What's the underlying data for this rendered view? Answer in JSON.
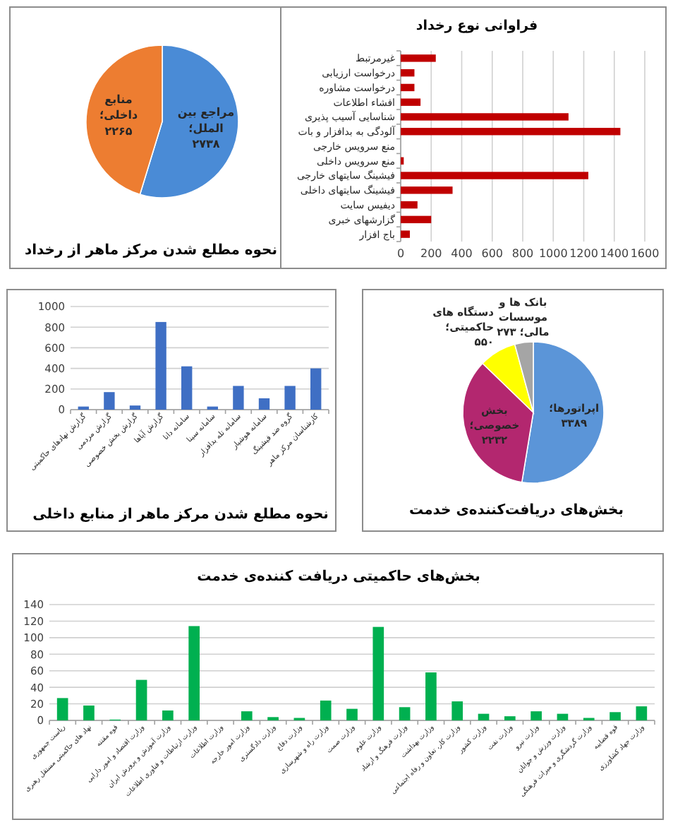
{
  "chart_data": [
    {
      "type": "pie",
      "title": "نحوه مطلع شدن مرکز ماهر از رخداد",
      "categories": [
        "مراجع بین الملل؛",
        "منابع داخلی؛"
      ],
      "values": [
        2738,
        2265
      ],
      "value_labels": [
        "۲۷۳۸",
        "۲۲۶۵"
      ],
      "colors": [
        "#4a8bd6",
        "#ed7d31"
      ]
    },
    {
      "type": "bar",
      "orientation": "horizontal",
      "title": "فراوانی نوع رخداد",
      "categories": [
        "غیرمرتبط",
        "درخواست ارزیابی",
        "درخواست مشاوره",
        "افشاء اطلاعات",
        "شناسایی آسیب پذیری",
        "آلودگی به بدافزار و بات",
        "منع سرویس خارجی",
        "منع سرویس داخلی",
        "فیشینگ سایتهای خارجی",
        "فیشینگ سایتهای داخلی",
        "دیفیس سایت",
        "گزارشهای خبری",
        "باج افزار"
      ],
      "values": [
        230,
        90,
        90,
        130,
        1100,
        1440,
        0,
        20,
        1230,
        340,
        110,
        200,
        60
      ],
      "color": "#c00000",
      "xlim": [
        0,
        1600
      ],
      "xticks": [
        0,
        200,
        400,
        600,
        800,
        1000,
        1200,
        1400,
        1600
      ],
      "grid": "x"
    },
    {
      "type": "bar",
      "title": "نحوه مطلع شدن مرکز ماهر از منابع داخلی",
      "categories": [
        "گزارش نهادهای حاکمیتی",
        "گزارش مردمی",
        "گزارش بخش خصوصی",
        "گزارش آپاها",
        "سامانه دانا",
        "سامانه سینا",
        "سامانه تله بدافزار",
        "سامانه هوشیار",
        "گروه ضد فیشینگ",
        "کارشناسان مرکز ماهر"
      ],
      "values": [
        30,
        170,
        40,
        850,
        420,
        30,
        230,
        110,
        230,
        400
      ],
      "color": "#3f6fc4",
      "ylim": [
        0,
        1000
      ],
      "yticks": [
        0,
        200,
        400,
        600,
        800,
        1000
      ],
      "grid": "y"
    },
    {
      "type": "pie",
      "title": "بخش‌های دریافت‌کننده‌ی خدمت",
      "categories": [
        "اپراتورها؛",
        "بخش خصوصی؛",
        "دستگاه های حاکمیتی؛",
        "بانک ها و موسسات مالی؛"
      ],
      "values": [
        3389,
        2232,
        550,
        273
      ],
      "value_labels": [
        "۳۳۸۹",
        "۲۲۳۲",
        "۵۵۰",
        "۲۷۳"
      ],
      "colors": [
        "#5b95d8",
        "#b3276f",
        "#ffff00",
        "#a5a5a5"
      ]
    },
    {
      "type": "bar",
      "title": "بخش‌های حاکمیتی دریافت کننده‌ی خدمت",
      "categories": [
        "ریاست جمهوری",
        "نهاد های حاکمیتی مستقل رهبری",
        "قوه مقننه",
        "وزارت اقتصاد و امور دارایی",
        "وزارت آموزش و پرورش ایران",
        "وزارت ارتباطات و فناوری اطلاعات",
        "وزارت اطلاعات",
        "وزارت امور خارجه",
        "وزارت دادگستری",
        "وزارت دفاع",
        "وزارت راه و شهرسازی",
        "وزارت صمت",
        "وزارت علوم",
        "وزارت فرهنگ و ارشاد",
        "وزارت بهداشت",
        "وزارت کار، تعاون و رفاه اجتماعی",
        "وزارت کشور",
        "وزارت نفت",
        "وزارت نیرو",
        "وزارت ورزش و جوانان",
        "وزارت گردشگری و میراث فرهنگی",
        "قوه قضاییه",
        "وزارت جهاد کشاورزی"
      ],
      "values": [
        27,
        18,
        1,
        49,
        12,
        114,
        0,
        11,
        4,
        3,
        24,
        14,
        113,
        16,
        58,
        23,
        8,
        5,
        11,
        8,
        3,
        10,
        17
      ],
      "color": "#00b050",
      "ylim": [
        0,
        140
      ],
      "yticks": [
        0,
        20,
        40,
        60,
        80,
        100,
        120,
        140
      ],
      "grid": "y"
    }
  ]
}
